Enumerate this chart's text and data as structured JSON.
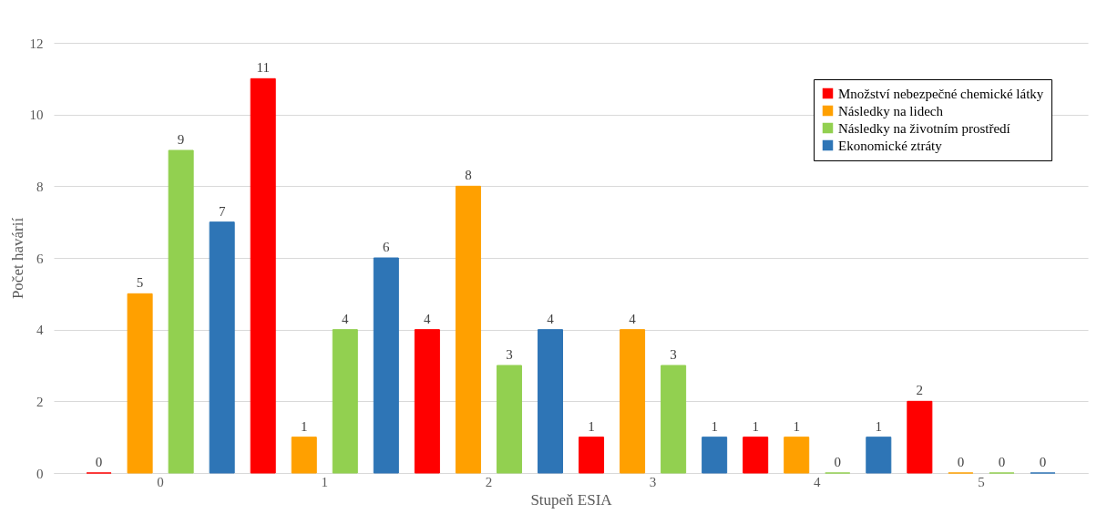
{
  "chart_data": {
    "type": "bar",
    "xlabel": "Stupeň ESIA",
    "ylabel": "Počet havárií",
    "categories": [
      "0",
      "1",
      "2",
      "3",
      "4",
      "5"
    ],
    "series": [
      {
        "name": "Množství nebezpečné chemické látky",
        "color": "#ff0000",
        "values": [
          0,
          11,
          4,
          1,
          1,
          2
        ]
      },
      {
        "name": "Následky na lidech",
        "color": "#ffa000",
        "values": [
          5,
          1,
          8,
          4,
          1,
          0
        ]
      },
      {
        "name": "Následky na životním prostředí",
        "color": "#92d050",
        "values": [
          9,
          4,
          3,
          3,
          0,
          0
        ]
      },
      {
        "name": "Ekonomické ztráty",
        "color": "#2e75b6",
        "values": [
          7,
          6,
          4,
          1,
          1,
          0
        ]
      }
    ],
    "ylim": [
      0,
      12
    ],
    "yticks": [
      0,
      2,
      4,
      6,
      8,
      10,
      12
    ],
    "grid": "y",
    "legend": "top right",
    "data_labels": true
  }
}
